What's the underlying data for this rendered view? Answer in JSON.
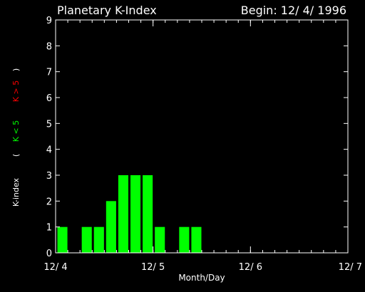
{
  "chart_data": {
    "type": "bar",
    "title": "Planetary K-Index",
    "begin_label": "Begin: 12/ 4/ 1996",
    "xlabel": "Month/Day",
    "ylabel": {
      "prefix": "K-index",
      "open": "(",
      "low": "K < 5",
      "high": "K > 5",
      "close": ")"
    },
    "ylim": [
      0,
      9
    ],
    "yticks": [
      "0",
      "1",
      "2",
      "3",
      "4",
      "5",
      "6",
      "7",
      "8",
      "9"
    ],
    "xlim": [
      0,
      24
    ],
    "xticks": [
      {
        "label": "12/ 4",
        "value": 0
      },
      {
        "label": "12/ 5",
        "value": 8
      },
      {
        "label": "12/ 6",
        "value": 16
      },
      {
        "label": "12/ 7",
        "value": 24
      }
    ],
    "values": [
      1,
      0,
      1,
      1,
      2,
      3,
      3,
      3,
      1,
      0,
      1,
      1,
      0,
      0,
      0,
      0,
      0,
      0,
      0,
      0,
      0,
      0,
      0,
      0
    ],
    "colors": {
      "low": "#00ff00",
      "high": "#ff0000",
      "axis": "#ffffff",
      "background": "#000000"
    },
    "grid": false
  }
}
